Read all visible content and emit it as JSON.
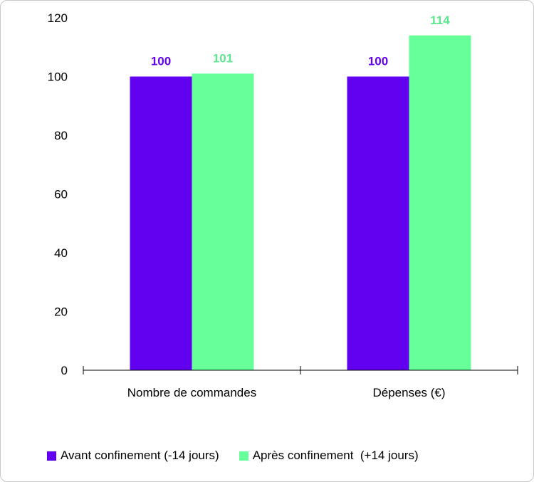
{
  "chart_data": {
    "type": "bar",
    "categories": [
      "Nombre de commandes",
      "Dépenses (€)"
    ],
    "series": [
      {
        "name": "Avant confinement (-14 jours)",
        "values": [
          100,
          100
        ],
        "color": "#6200f0"
      },
      {
        "name": "Après confinement  (+14 jours)",
        "values": [
          101,
          114
        ],
        "color": "#66ff99"
      }
    ],
    "label_colors": [
      "#6200f0",
      "#5ee68f"
    ],
    "ylim": [
      0,
      120
    ],
    "yticks": [
      0,
      20,
      40,
      60,
      80,
      100,
      120
    ],
    "title": "",
    "xlabel": "",
    "ylabel": "",
    "legend": "bottom",
    "grid": false
  }
}
